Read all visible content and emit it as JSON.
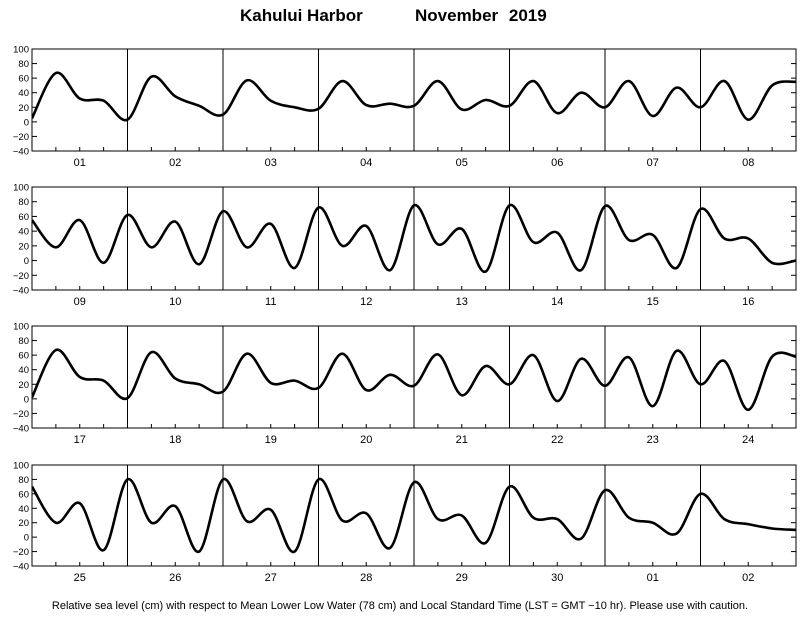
{
  "title": {
    "location": "Kahului Harbor",
    "period": "November   2019"
  },
  "caption": "Relative sea level (cm) with respect to Mean Lower Low Water (78 cm) and Local Standard Time (LST = GMT −10 hr). Please use with caution.",
  "colors": {
    "line": "#000000",
    "axis": "#000000",
    "background": "#ffffff"
  },
  "chart_data": [
    {
      "type": "line",
      "title": "",
      "xlabel": "",
      "ylabel": "",
      "ylim": [
        -40,
        100
      ],
      "yticks": [
        "100",
        "80",
        "60",
        "40",
        "20",
        "0",
        "−20",
        "−40"
      ],
      "yticks_values": [
        100,
        80,
        60,
        40,
        20,
        0,
        -20,
        -40
      ],
      "xlim": [
        0,
        8
      ],
      "day_labels": [
        "01",
        "02",
        "03",
        "04",
        "05",
        "06",
        "07",
        "08"
      ],
      "grid": false,
      "series": [
        {
          "x": [
            0,
            0.25,
            0.5,
            0.75,
            1,
            1.25,
            1.5,
            1.75,
            2,
            2.25,
            2.5,
            2.75,
            3,
            3.25,
            3.5,
            3.75,
            4,
            4.25,
            4.5,
            4.75,
            5,
            5.25,
            5.5,
            5.75,
            6,
            6.25,
            6.5,
            6.75,
            7,
            7.25,
            7.5,
            7.75,
            8
          ],
          "y": [
            5,
            67,
            32,
            29,
            3,
            62,
            35,
            22,
            10,
            57,
            29,
            20,
            18,
            56,
            23,
            25,
            22,
            56,
            17,
            30,
            22,
            56,
            12,
            40,
            20,
            56,
            8,
            47,
            20,
            56,
            3,
            50,
            55
          ]
        }
      ]
    },
    {
      "type": "line",
      "title": "",
      "xlabel": "",
      "ylabel": "",
      "ylim": [
        -40,
        100
      ],
      "yticks": [
        "100",
        "80",
        "60",
        "40",
        "20",
        "0",
        "−20",
        "−40"
      ],
      "yticks_values": [
        100,
        80,
        60,
        40,
        20,
        0,
        -20,
        -40
      ],
      "xlim": [
        8,
        16
      ],
      "day_labels": [
        "09",
        "10",
        "11",
        "12",
        "13",
        "14",
        "15",
        "16"
      ],
      "grid": false,
      "series": [
        {
          "x": [
            8,
            8.25,
            8.5,
            8.75,
            9,
            9.25,
            9.5,
            9.75,
            10,
            10.25,
            10.5,
            10.75,
            11,
            11.25,
            11.5,
            11.75,
            12,
            12.25,
            12.5,
            12.75,
            13,
            13.25,
            13.5,
            13.75,
            14,
            14.25,
            14.5,
            14.75,
            15,
            15.25,
            15.5,
            15.75,
            16
          ],
          "y": [
            55,
            18,
            55,
            -3,
            62,
            18,
            53,
            -5,
            67,
            18,
            50,
            -10,
            72,
            20,
            47,
            -13,
            75,
            22,
            43,
            -15,
            75,
            25,
            38,
            -13,
            74,
            28,
            35,
            -10,
            70,
            30,
            30,
            -3,
            0
          ]
        }
      ]
    },
    {
      "type": "line",
      "title": "",
      "xlabel": "",
      "ylabel": "",
      "ylim": [
        -40,
        100
      ],
      "yticks": [
        "100",
        "80",
        "60",
        "40",
        "20",
        "0",
        "−20",
        "−40"
      ],
      "yticks_values": [
        100,
        80,
        60,
        40,
        20,
        0,
        -20,
        -40
      ],
      "xlim": [
        16,
        24
      ],
      "day_labels": [
        "17",
        "18",
        "19",
        "20",
        "21",
        "22",
        "23",
        "24"
      ],
      "grid": false,
      "series": [
        {
          "x": [
            16,
            16.25,
            16.5,
            16.75,
            17,
            17.25,
            17.5,
            17.75,
            18,
            18.25,
            18.5,
            18.75,
            19,
            19.25,
            19.5,
            19.75,
            20,
            20.25,
            20.5,
            20.75,
            21,
            21.25,
            21.5,
            21.75,
            22,
            22.25,
            22.5,
            22.75,
            23,
            23.25,
            23.5,
            23.75,
            24
          ],
          "y": [
            2,
            67,
            30,
            25,
            1,
            64,
            28,
            20,
            10,
            62,
            22,
            25,
            15,
            62,
            12,
            33,
            18,
            61,
            5,
            45,
            20,
            60,
            -3,
            55,
            18,
            57,
            -10,
            66,
            20,
            52,
            -15,
            58,
            58
          ]
        }
      ]
    },
    {
      "type": "line",
      "title": "",
      "xlabel": "",
      "ylabel": "",
      "ylim": [
        -40,
        100
      ],
      "yticks": [
        "100",
        "80",
        "60",
        "40",
        "20",
        "0",
        "−20",
        "−40"
      ],
      "yticks_values": [
        100,
        80,
        60,
        40,
        20,
        0,
        -20,
        -40
      ],
      "xlim": [
        24,
        32
      ],
      "day_labels": [
        "25",
        "26",
        "27",
        "28",
        "29",
        "30",
        "01",
        "02"
      ],
      "grid": false,
      "series": [
        {
          "x": [
            24,
            24.25,
            24.5,
            24.75,
            25,
            25.25,
            25.5,
            25.75,
            26,
            26.25,
            26.5,
            26.75,
            27,
            27.25,
            27.5,
            27.75,
            28,
            28.25,
            28.5,
            28.75,
            29,
            29.25,
            29.5,
            29.75,
            30,
            30.25,
            30.5,
            30.75,
            31,
            31.25,
            31.5,
            31.75,
            32
          ],
          "y": [
            70,
            20,
            47,
            -18,
            80,
            20,
            43,
            -20,
            80,
            22,
            38,
            -20,
            80,
            23,
            33,
            -15,
            76,
            25,
            30,
            -8,
            70,
            27,
            25,
            -2,
            65,
            27,
            20,
            5,
            60,
            25,
            18,
            12,
            10
          ]
        }
      ]
    }
  ]
}
